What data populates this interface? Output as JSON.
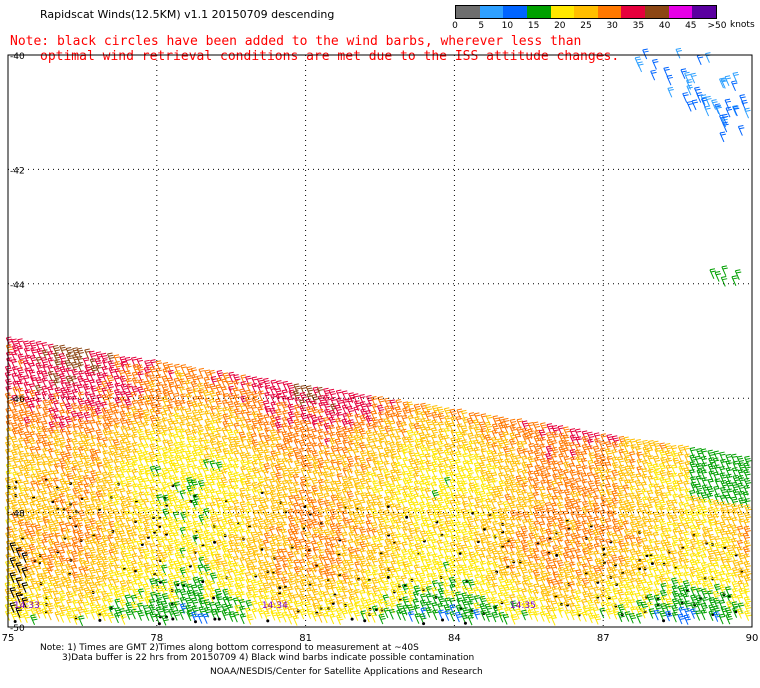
{
  "title": "Rapidscat Winds(12.5KM) v1.1 20150709 descending",
  "notes": [
    "Note: black circles have been added to the wind barbs, wherever less than",
    "optimal wind retrieval conditions are met due to the ISS attitude changes."
  ],
  "legend": {
    "unit": "knots",
    "labels": [
      "0",
      "5",
      "10",
      "15",
      "20",
      "25",
      "30",
      "35",
      "40",
      "45",
      ">50"
    ],
    "colors": [
      "#6e6e6e",
      "#2ea0ff",
      "#0064ff",
      "#00a000",
      "#ffe800",
      "#ffbe00",
      "#ff7800",
      "#e6003c",
      "#8c4614",
      "#e600e6",
      "#5a00a0"
    ]
  },
  "footer": {
    "line1": "Note: 1) Times are GMT 2)Times along bottom correspond to measurement at ~40S",
    "line2": "3)Data buffer is 22 hrs from 20150709 4) Black wind barbs indicate possible contamination",
    "line3": "NOAA/NESDIS/Center for Satellite Applications and Research"
  },
  "chart_data": {
    "type": "wind barb map",
    "x_ticks": [
      "75",
      "78",
      "81",
      "84",
      "87",
      "90"
    ],
    "y_ticks": [
      "-40",
      "-42",
      "-44",
      "-46",
      "-48",
      "-50"
    ],
    "xlim": [
      75,
      90
    ],
    "ylim": [
      -50,
      -40
    ],
    "grid": true,
    "time_labels": [
      {
        "text": "14:33",
        "lon": 75.2
      },
      {
        "text": "14:34",
        "lon": 80.2
      },
      {
        "text": "14:35",
        "lon": 85.2
      }
    ],
    "swath_main": {
      "west_lat_top": -45.0,
      "east_lat_top": -47.1
    },
    "swath_ne": {
      "lon_start": 87.5,
      "lat_start": -40.0,
      "lon_end": 90.0,
      "lat_end": -41.7
    },
    "speed_bands_knots": [
      25,
      30,
      35
    ]
  }
}
